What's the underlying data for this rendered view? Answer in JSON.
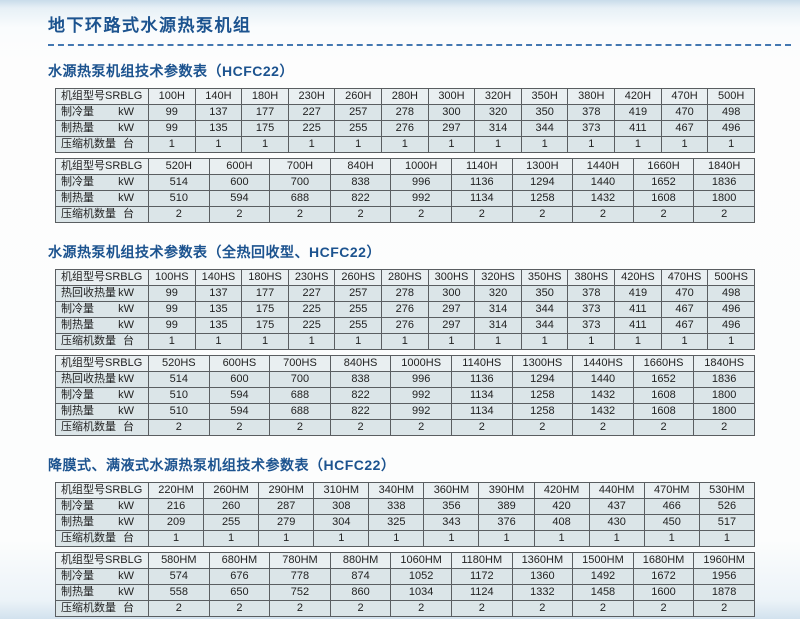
{
  "page": {
    "title": "地下环路式水源热泵机组"
  },
  "sections": [
    {
      "heading": "水源热泵机组技术参数表（HCFC22）",
      "tables": [
        {
          "header_label": "机组型号SRBLG",
          "models": [
            "100H",
            "140H",
            "180H",
            "230H",
            "260H",
            "280H",
            "300H",
            "320H",
            "350H",
            "380H",
            "420H",
            "470H",
            "500H"
          ],
          "rows": [
            {
              "label": "制冷量",
              "unit": "kW",
              "values": [
                "99",
                "137",
                "177",
                "227",
                "257",
                "278",
                "300",
                "320",
                "350",
                "378",
                "419",
                "470",
                "498"
              ]
            },
            {
              "label": "制热量",
              "unit": "kW",
              "values": [
                "99",
                "135",
                "175",
                "225",
                "255",
                "276",
                "297",
                "314",
                "344",
                "373",
                "411",
                "467",
                "496"
              ]
            },
            {
              "label": "压缩机数量",
              "unit": "台",
              "values": [
                "1",
                "1",
                "1",
                "1",
                "1",
                "1",
                "1",
                "1",
                "1",
                "1",
                "1",
                "1",
                "1"
              ]
            }
          ]
        },
        {
          "header_label": "机组型号SRBLG",
          "models": [
            "520H",
            "600H",
            "700H",
            "840H",
            "1000H",
            "1140H",
            "1300H",
            "1440H",
            "1660H",
            "1840H"
          ],
          "rows": [
            {
              "label": "制冷量",
              "unit": "kW",
              "values": [
                "514",
                "600",
                "700",
                "838",
                "996",
                "1136",
                "1294",
                "1440",
                "1652",
                "1836"
              ]
            },
            {
              "label": "制热量",
              "unit": "kW",
              "values": [
                "510",
                "594",
                "688",
                "822",
                "992",
                "1134",
                "1258",
                "1432",
                "1608",
                "1800"
              ]
            },
            {
              "label": "压缩机数量",
              "unit": "台",
              "values": [
                "2",
                "2",
                "2",
                "2",
                "2",
                "2",
                "2",
                "2",
                "2",
                "2"
              ]
            }
          ]
        }
      ]
    },
    {
      "heading": "水源热泵机组技术参数表（全热回收型、HCFC22）",
      "tables": [
        {
          "header_label": "机组型号SRBLG",
          "models": [
            "100HS",
            "140HS",
            "180HS",
            "230HS",
            "260HS",
            "280HS",
            "300HS",
            "320HS",
            "350HS",
            "380HS",
            "420HS",
            "470HS",
            "500HS"
          ],
          "rows": [
            {
              "label": "热回收热量",
              "unit": "kW",
              "values": [
                "99",
                "137",
                "177",
                "227",
                "257",
                "278",
                "300",
                "320",
                "350",
                "378",
                "419",
                "470",
                "498"
              ]
            },
            {
              "label": "制冷量",
              "unit": "kW",
              "values": [
                "99",
                "135",
                "175",
                "225",
                "255",
                "276",
                "297",
                "314",
                "344",
                "373",
                "411",
                "467",
                "496"
              ]
            },
            {
              "label": "制热量",
              "unit": "kW",
              "values": [
                "99",
                "135",
                "175",
                "225",
                "255",
                "276",
                "297",
                "314",
                "344",
                "373",
                "411",
                "467",
                "496"
              ]
            },
            {
              "label": "压缩机数量",
              "unit": "台",
              "values": [
                "1",
                "1",
                "1",
                "1",
                "1",
                "1",
                "1",
                "1",
                "1",
                "1",
                "1",
                "1",
                "1"
              ]
            }
          ]
        },
        {
          "header_label": "机组型号SRBLG",
          "models": [
            "520HS",
            "600HS",
            "700HS",
            "840HS",
            "1000HS",
            "1140HS",
            "1300HS",
            "1440HS",
            "1660HS",
            "1840HS"
          ],
          "rows": [
            {
              "label": "热回收热量",
              "unit": "kW",
              "values": [
                "514",
                "600",
                "700",
                "838",
                "996",
                "1136",
                "1294",
                "1440",
                "1652",
                "1836"
              ]
            },
            {
              "label": "制冷量",
              "unit": "kW",
              "values": [
                "510",
                "594",
                "688",
                "822",
                "992",
                "1134",
                "1258",
                "1432",
                "1608",
                "1800"
              ]
            },
            {
              "label": "制热量",
              "unit": "kW",
              "values": [
                "510",
                "594",
                "688",
                "822",
                "992",
                "1134",
                "1258",
                "1432",
                "1608",
                "1800"
              ]
            },
            {
              "label": "压缩机数量",
              "unit": "台",
              "values": [
                "2",
                "2",
                "2",
                "2",
                "2",
                "2",
                "2",
                "2",
                "2",
                "2"
              ]
            }
          ]
        }
      ]
    },
    {
      "heading": "降膜式、满液式水源热泵机组技术参数表（HCFC22）",
      "tables": [
        {
          "header_label": "机组型号SRBLG",
          "models": [
            "220HM",
            "260HM",
            "290HM",
            "310HM",
            "340HM",
            "360HM",
            "390HM",
            "420HM",
            "440HM",
            "470HM",
            "530HM"
          ],
          "rows": [
            {
              "label": "制冷量",
              "unit": "kW",
              "values": [
                "216",
                "260",
                "287",
                "308",
                "338",
                "356",
                "389",
                "420",
                "437",
                "466",
                "526"
              ]
            },
            {
              "label": "制热量",
              "unit": "kW",
              "values": [
                "209",
                "255",
                "279",
                "304",
                "325",
                "343",
                "376",
                "408",
                "430",
                "450",
                "517"
              ]
            },
            {
              "label": "压缩机数量",
              "unit": "台",
              "values": [
                "1",
                "1",
                "1",
                "1",
                "1",
                "1",
                "1",
                "1",
                "1",
                "1",
                "1"
              ]
            }
          ]
        },
        {
          "header_label": "机组型号SRBLG",
          "models": [
            "580HM",
            "680HM",
            "780HM",
            "880HM",
            "1060HM",
            "1180HM",
            "1360HM",
            "1500HM",
            "1680HM",
            "1960HM"
          ],
          "rows": [
            {
              "label": "制冷量",
              "unit": "kW",
              "values": [
                "574",
                "676",
                "778",
                "874",
                "1052",
                "1172",
                "1360",
                "1492",
                "1672",
                "1956"
              ]
            },
            {
              "label": "制热量",
              "unit": "kW",
              "values": [
                "558",
                "650",
                "752",
                "860",
                "1034",
                "1124",
                "1332",
                "1458",
                "1600",
                "1878"
              ]
            },
            {
              "label": "压缩机数量",
              "unit": "台",
              "values": [
                "2",
                "2",
                "2",
                "2",
                "2",
                "2",
                "2",
                "2",
                "2",
                "2"
              ]
            }
          ]
        }
      ]
    }
  ],
  "colors": {
    "heading_blue": "#1c538f",
    "divider_blue": "#4478b1",
    "cell_bg": "#dbe5e8",
    "header_cell_bg": "#e9eff1",
    "cell_border": "#5a5e61"
  }
}
